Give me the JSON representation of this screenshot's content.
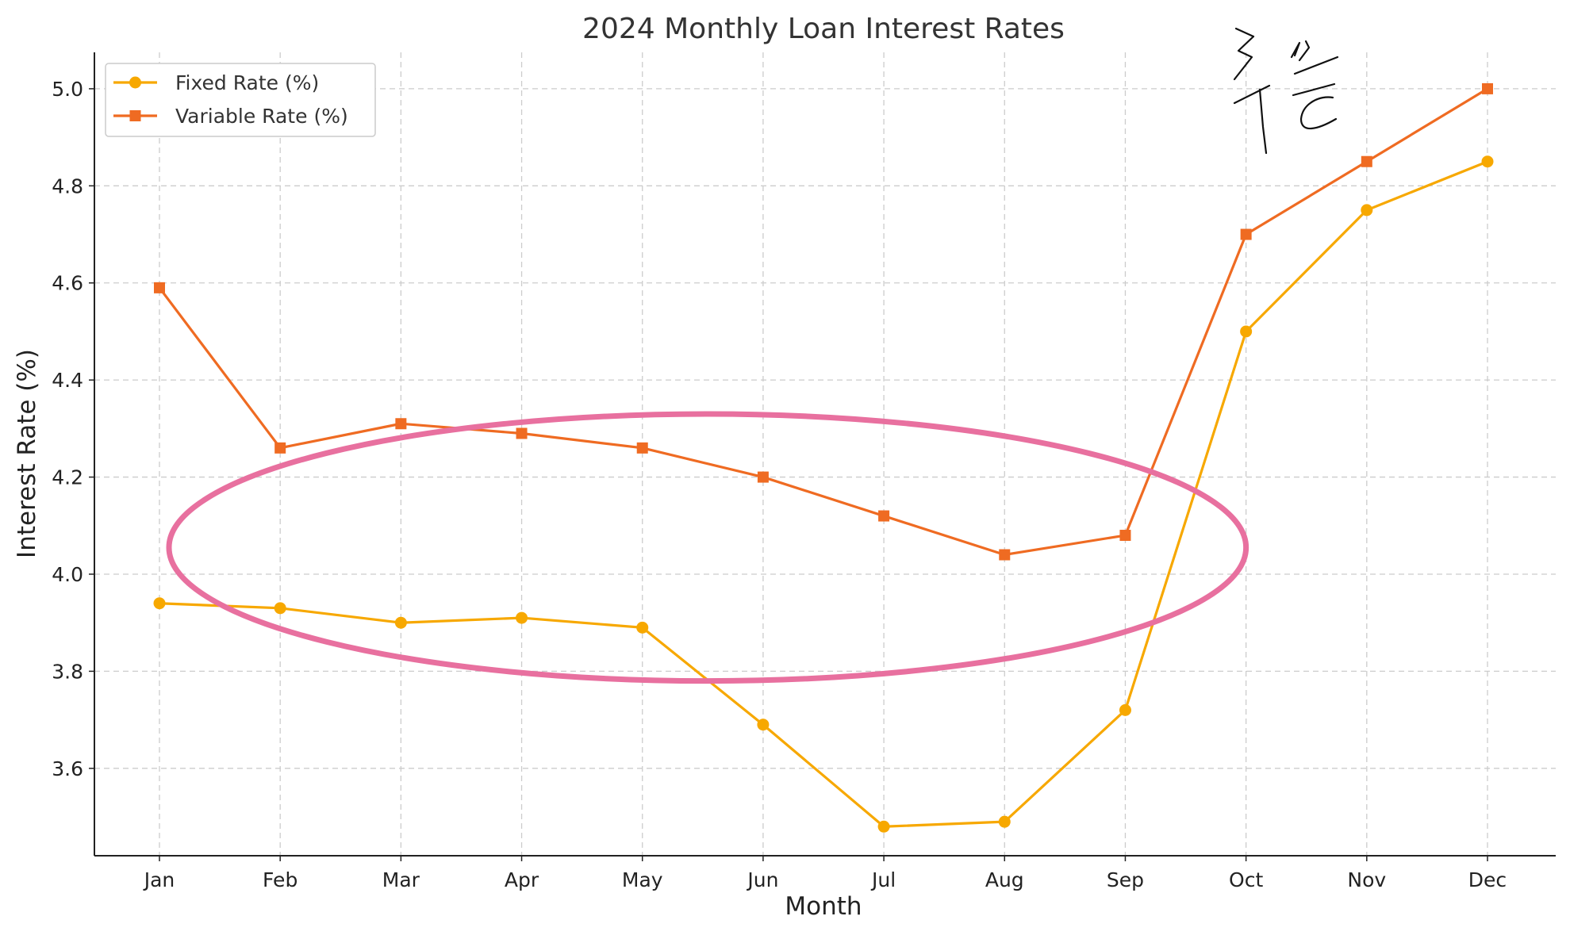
{
  "chart_data": {
    "type": "line",
    "title": "2024 Monthly Loan Interest Rates",
    "xlabel": "Month",
    "ylabel": "Interest Rate (%)",
    "categories": [
      "Jan",
      "Feb",
      "Mar",
      "Apr",
      "May",
      "Jun",
      "Jul",
      "Aug",
      "Sep",
      "Oct",
      "Nov",
      "Dec"
    ],
    "ylim": [
      3.42,
      5.075
    ],
    "yticks": [
      3.6,
      3.8,
      4.0,
      4.2,
      4.4,
      4.6,
      4.8,
      5.0
    ],
    "ytick_labels": [
      "3.6",
      "3.8",
      "4.0",
      "4.2",
      "4.4",
      "4.6",
      "4.8",
      "5.0"
    ],
    "grid": true,
    "legend_position": "top-left",
    "series": [
      {
        "name": "Fixed Rate (%)",
        "color": "#F7A800",
        "marker": "circle",
        "values": [
          3.94,
          3.93,
          3.9,
          3.91,
          3.89,
          3.69,
          3.48,
          3.49,
          3.72,
          4.5,
          4.75,
          4.85
        ]
      },
      {
        "name": "Variable Rate (%)",
        "color": "#EF6B22",
        "marker": "square",
        "values": [
          4.59,
          4.26,
          4.31,
          4.29,
          4.26,
          4.2,
          4.12,
          4.04,
          4.08,
          4.7,
          4.85,
          5.0
        ]
      }
    ],
    "annotations": [
      {
        "type": "ellipse-highlight",
        "color": "#E8709F",
        "x_from": "Jan",
        "x_to": "Oct",
        "y_range": [
          3.78,
          4.33
        ]
      },
      {
        "type": "handwritten-scribble",
        "color": "#111111",
        "near": "top-right"
      }
    ]
  }
}
